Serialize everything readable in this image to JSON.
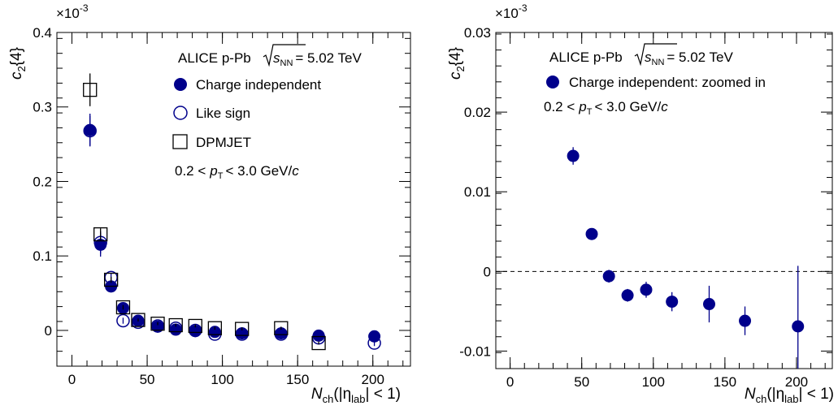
{
  "chart_data": [
    {
      "type": "scatter",
      "ylabel_main": "c",
      "ylabel_sub": "2",
      "ylabel_tail": "{4}",
      "exponent_label": "×10",
      "exponent_power": "-3",
      "xlabel_main": "N",
      "xlabel_sub": "ch",
      "xlabel_open": "(|η",
      "xlabel_sub2": "lab",
      "xlabel_close": "| < 1)",
      "xlim": [
        -10,
        225
      ],
      "ylim": [
        -0.048,
        0.4
      ],
      "xticks": [
        0,
        50,
        100,
        150,
        200
      ],
      "yticks": [
        0,
        0.1,
        0.2,
        0.3,
        0.4
      ],
      "ytick_labels": [
        "0",
        "0.1",
        "0.2",
        "0.3",
        "0.4"
      ],
      "xtick_labels": [
        "0",
        "50",
        "100",
        "150",
        "200"
      ],
      "annotation_experiment": "ALICE p-Pb",
      "annotation_energy_sym": "s",
      "annotation_energy_sub": "NN",
      "annotation_energy_val": "= 5.02 TeV",
      "annotation_pt": {
        "lo": "0.2 <",
        "var": "p",
        "sub": "T",
        "hi": "< 3.0 GeV/",
        "unit": "c"
      },
      "series": [
        {
          "name": "Charge independent",
          "marker": "filled-circle",
          "color": "#00008b",
          "x": [
            12,
            19,
            26,
            34,
            44,
            57,
            69,
            82,
            95,
            113,
            139,
            164,
            201
          ],
          "y": [
            0.269,
            0.115,
            0.059,
            0.03,
            0.013,
            0.005,
            0.001,
            -0.001,
            -0.002,
            -0.004,
            -0.004,
            -0.007,
            -0.008
          ],
          "yerr": [
            0.022,
            0.016,
            0.006,
            0.004,
            0.002,
            0.002,
            0.002,
            0.002,
            0.002,
            0.002,
            0.002,
            0.003,
            0.004
          ]
        },
        {
          "name": "Like sign",
          "marker": "open-circle",
          "color": "#00008b",
          "x": [
            12,
            19,
            26,
            34,
            44,
            57,
            69,
            82,
            95,
            113,
            139,
            164,
            201
          ],
          "y": [
            0.268,
            0.118,
            0.071,
            0.013,
            0.011,
            0.006,
            0.003,
            0.0,
            -0.005,
            -0.005,
            -0.005,
            -0.01,
            -0.017
          ],
          "yerr": [
            0.02,
            0.015,
            0.006,
            0.004,
            0.002,
            0.002,
            0.002,
            0.002,
            0.002,
            0.002,
            0.002,
            0.003,
            0.004
          ]
        },
        {
          "name": "DPMJET",
          "marker": "open-square",
          "color": "#000000",
          "x": [
            12,
            19,
            26,
            34,
            44,
            57,
            69,
            82,
            95,
            113,
            139,
            164
          ],
          "y": [
            0.323,
            0.129,
            0.068,
            0.031,
            0.014,
            0.009,
            0.007,
            0.006,
            0.003,
            0.002,
            0.003,
            -0.017
          ],
          "yerr": [
            0.022,
            0.008,
            0.004,
            0.003,
            0.002,
            0.002,
            0.002,
            0.002,
            0.002,
            0.002,
            0.002,
            0.002
          ]
        }
      ]
    },
    {
      "type": "scatter",
      "ylabel_main": "c",
      "ylabel_sub": "2",
      "ylabel_tail": "{4}",
      "exponent_label": "×10",
      "exponent_power": "-3",
      "xlabel_main": "N",
      "xlabel_sub": "ch",
      "xlabel_open": "(|η",
      "xlabel_sub2": "lab",
      "xlabel_close": "| < 1)",
      "xlim": [
        -10,
        225
      ],
      "ylim": [
        -0.0122,
        0.03
      ],
      "xticks": [
        0,
        50,
        100,
        150,
        200
      ],
      "yticks": [
        -0.01,
        0,
        0.01,
        0.02,
        0.03
      ],
      "ytick_labels": [
        "-0.01",
        "0",
        "0.01",
        "0.02",
        "0.03"
      ],
      "xtick_labels": [
        "0",
        "50",
        "100",
        "150",
        "200"
      ],
      "reference_line_y": 0,
      "annotation_experiment": "ALICE p-Pb",
      "annotation_energy_sym": "s",
      "annotation_energy_sub": "NN",
      "annotation_energy_val": "= 5.02 TeV",
      "annotation_pt": {
        "lo": "0.2 <",
        "var": "p",
        "sub": "T",
        "hi": "< 3.0 GeV/",
        "unit": "c"
      },
      "series": [
        {
          "name": "Charge independent: zoomed in",
          "marker": "filled-circle",
          "color": "#00008b",
          "x": [
            44,
            57,
            69,
            82,
            95,
            113,
            139,
            164,
            201
          ],
          "y": [
            0.0145,
            0.0047,
            -0.0006,
            -0.003,
            -0.0023,
            -0.0038,
            -0.0041,
            -0.0062,
            -0.0069
          ],
          "yerr": [
            0.0011,
            0.0006,
            0.0008,
            0.0008,
            0.001,
            0.0012,
            0.0023,
            0.0018,
            0.0076
          ]
        }
      ]
    }
  ]
}
